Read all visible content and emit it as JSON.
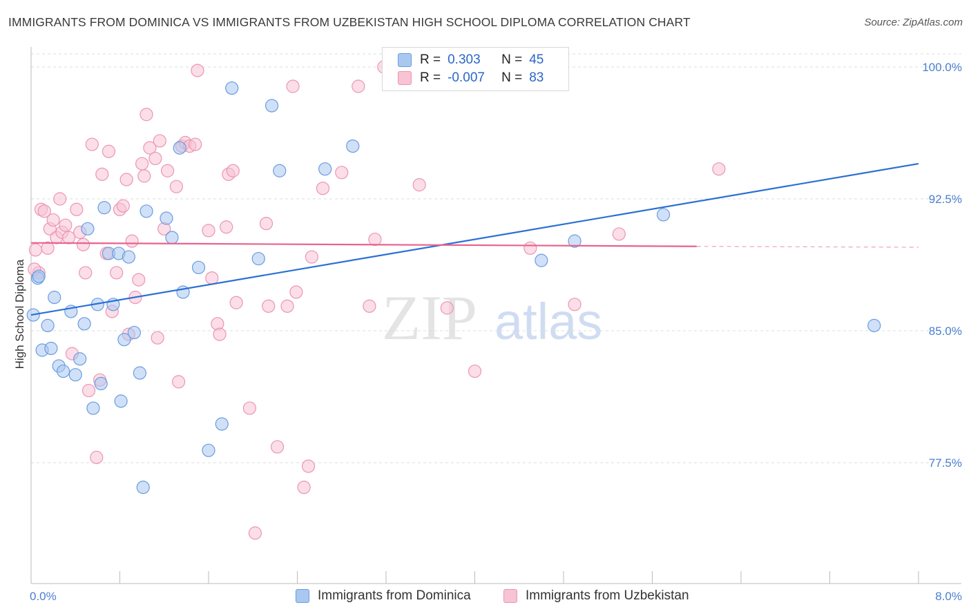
{
  "title": "IMMIGRANTS FROM DOMINICA VS IMMIGRANTS FROM UZBEKISTAN HIGH SCHOOL DIPLOMA CORRELATION CHART",
  "source": "Source: ZipAtlas.com",
  "watermark": {
    "zip": "ZIP",
    "atlas": "atlas"
  },
  "legend_stats": [
    {
      "r_label": "R =",
      "r_value": "0.303",
      "n_label": "N =",
      "n_value": "45"
    },
    {
      "r_label": "R =",
      "r_value": "-0.007",
      "n_label": "N =",
      "n_value": "83"
    }
  ],
  "colors": {
    "blue_fill": "#a9c8f0",
    "blue_stroke": "#6a9be0",
    "blue_line": "#2a6fd4",
    "pink_fill": "#f8c3d4",
    "pink_stroke": "#eb95b2",
    "pink_line": "#e8628e",
    "tick_text": "#4a7fd0",
    "grid": "#dddddd"
  },
  "chart_data": {
    "type": "scatter",
    "title": "IMMIGRANTS FROM DOMINICA VS IMMIGRANTS FROM UZBEKISTAN HIGH SCHOOL DIPLOMA CORRELATION CHART",
    "xlabel": "",
    "ylabel": "High School Diploma",
    "xlim": [
      0.0,
      8.0
    ],
    "ylim": [
      70.0,
      101.0
    ],
    "x_tick_labels": [
      "0.0%",
      "8.0%"
    ],
    "y_tick_labels": [
      "100.0%",
      "92.5%",
      "85.0%",
      "77.5%"
    ],
    "y_ticks": [
      100.0,
      92.5,
      85.0,
      77.5
    ],
    "grid": true,
    "legend_placement": "bottom-center",
    "series": [
      {
        "name": "Immigrants from Dominica",
        "r": 0.303,
        "n": 45,
        "trend": {
          "x": [
            0.0,
            8.0
          ],
          "y": [
            85.9,
            94.5
          ]
        },
        "points": [
          [
            0.02,
            85.9
          ],
          [
            0.06,
            88.0
          ],
          [
            0.1,
            83.9
          ],
          [
            0.15,
            85.3
          ],
          [
            0.18,
            84.0
          ],
          [
            0.21,
            86.9
          ],
          [
            0.25,
            83.0
          ],
          [
            0.29,
            82.7
          ],
          [
            0.36,
            86.1
          ],
          [
            0.4,
            82.5
          ],
          [
            0.44,
            83.4
          ],
          [
            0.48,
            85.4
          ],
          [
            0.51,
            90.8
          ],
          [
            0.56,
            80.6
          ],
          [
            0.6,
            86.5
          ],
          [
            0.63,
            82.0
          ],
          [
            0.66,
            92.0
          ],
          [
            0.7,
            89.4
          ],
          [
            0.74,
            86.5
          ],
          [
            0.79,
            89.4
          ],
          [
            0.81,
            81.0
          ],
          [
            0.84,
            84.5
          ],
          [
            0.88,
            89.2
          ],
          [
            0.93,
            84.9
          ],
          [
            0.98,
            82.6
          ],
          [
            1.01,
            76.1
          ],
          [
            1.04,
            91.8
          ],
          [
            1.22,
            91.4
          ],
          [
            1.27,
            90.3
          ],
          [
            1.34,
            95.4
          ],
          [
            1.37,
            87.2
          ],
          [
            1.51,
            88.6
          ],
          [
            1.72,
            79.7
          ],
          [
            1.6,
            78.2
          ],
          [
            1.81,
            98.8
          ],
          [
            2.05,
            89.1
          ],
          [
            2.17,
            97.8
          ],
          [
            2.24,
            94.1
          ],
          [
            2.65,
            94.2
          ],
          [
            2.9,
            95.5
          ],
          [
            4.6,
            89.0
          ],
          [
            4.9,
            90.1
          ],
          [
            5.7,
            91.6
          ],
          [
            7.6,
            85.3
          ],
          [
            0.07,
            88.1
          ]
        ]
      },
      {
        "name": "Immigrants from Uzbekistan",
        "r": -0.007,
        "n": 83,
        "trend": {
          "x": [
            0.0,
            6.0
          ],
          "y": [
            90.0,
            89.8
          ]
        },
        "trend_dashed": {
          "x": [
            6.0,
            8.0
          ],
          "y": [
            89.8,
            89.75
          ]
        },
        "points": [
          [
            0.04,
            89.6
          ],
          [
            0.07,
            88.3
          ],
          [
            0.09,
            91.9
          ],
          [
            0.12,
            91.8
          ],
          [
            0.15,
            89.7
          ],
          [
            0.17,
            90.8
          ],
          [
            0.2,
            91.3
          ],
          [
            0.23,
            90.3
          ],
          [
            0.26,
            92.5
          ],
          [
            0.28,
            90.6
          ],
          [
            0.31,
            91.0
          ],
          [
            0.34,
            90.3
          ],
          [
            0.37,
            83.7
          ],
          [
            0.41,
            91.9
          ],
          [
            0.44,
            90.6
          ],
          [
            0.47,
            89.9
          ],
          [
            0.49,
            88.3
          ],
          [
            0.52,
            81.6
          ],
          [
            0.55,
            95.6
          ],
          [
            0.59,
            77.8
          ],
          [
            0.62,
            82.2
          ],
          [
            0.64,
            93.9
          ],
          [
            0.68,
            89.4
          ],
          [
            0.7,
            95.2
          ],
          [
            0.73,
            86.1
          ],
          [
            0.77,
            88.3
          ],
          [
            0.8,
            91.9
          ],
          [
            0.83,
            92.1
          ],
          [
            0.86,
            93.6
          ],
          [
            0.88,
            84.8
          ],
          [
            0.91,
            90.1
          ],
          [
            0.94,
            86.9
          ],
          [
            0.97,
            87.9
          ],
          [
            1.0,
            94.5
          ],
          [
            1.02,
            93.8
          ],
          [
            1.04,
            97.3
          ],
          [
            1.07,
            95.4
          ],
          [
            1.12,
            94.8
          ],
          [
            1.14,
            84.6
          ],
          [
            1.16,
            95.8
          ],
          [
            1.2,
            90.8
          ],
          [
            1.23,
            94.1
          ],
          [
            1.31,
            93.2
          ],
          [
            1.33,
            82.1
          ],
          [
            1.36,
            95.5
          ],
          [
            1.39,
            95.7
          ],
          [
            1.43,
            95.5
          ],
          [
            1.48,
            95.6
          ],
          [
            1.5,
            99.8
          ],
          [
            1.6,
            90.7
          ],
          [
            1.63,
            88.0
          ],
          [
            1.68,
            85.4
          ],
          [
            1.7,
            84.8
          ],
          [
            1.76,
            90.9
          ],
          [
            1.78,
            93.9
          ],
          [
            1.82,
            94.1
          ],
          [
            1.85,
            86.6
          ],
          [
            1.97,
            80.6
          ],
          [
            2.02,
            73.5
          ],
          [
            2.12,
            91.1
          ],
          [
            2.14,
            86.4
          ],
          [
            2.22,
            78.4
          ],
          [
            2.31,
            86.4
          ],
          [
            2.36,
            98.9
          ],
          [
            2.39,
            87.2
          ],
          [
            2.46,
            76.1
          ],
          [
            2.5,
            77.3
          ],
          [
            2.53,
            89.2
          ],
          [
            2.63,
            93.1
          ],
          [
            2.8,
            94.0
          ],
          [
            2.95,
            98.9
          ],
          [
            3.05,
            86.4
          ],
          [
            3.1,
            90.2
          ],
          [
            3.18,
            100.0
          ],
          [
            3.5,
            93.3
          ],
          [
            3.75,
            86.3
          ],
          [
            4.0,
            82.7
          ],
          [
            4.25,
            100.0
          ],
          [
            4.5,
            89.7
          ],
          [
            4.9,
            86.5
          ],
          [
            5.3,
            90.5
          ],
          [
            6.2,
            94.2
          ],
          [
            0.03,
            88.5
          ]
        ]
      }
    ]
  }
}
